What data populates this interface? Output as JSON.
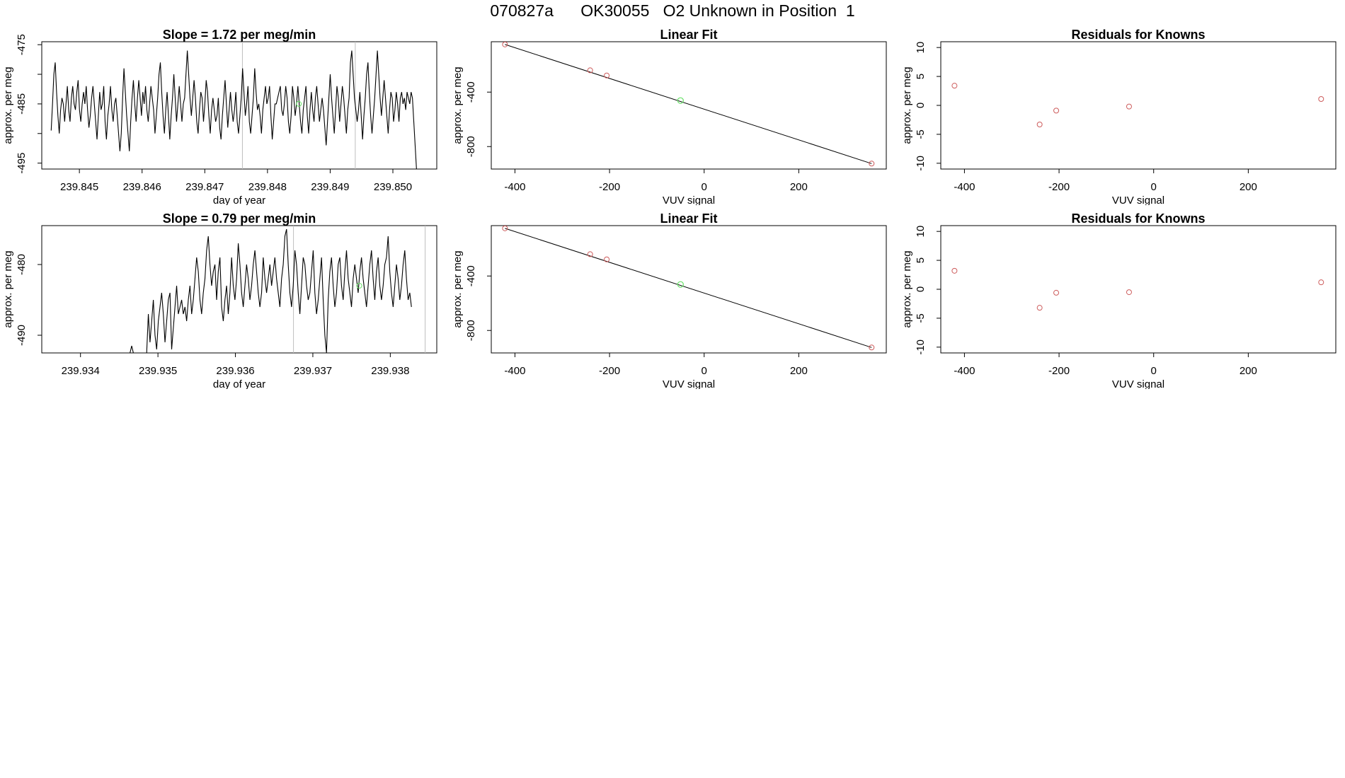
{
  "page": {
    "title": "070827a      OK30055   O2 Unknown in Position  1"
  },
  "colors": {
    "trace": "#000000",
    "vline": "#bebebe",
    "point": "#cd5c5c",
    "highlight": "#66e066"
  },
  "chart_data": [
    {
      "id": "ts1",
      "type": "line",
      "title": "Slope =  1.72  per meg/min",
      "xlabel": "day of year",
      "ylabel": "approx. per meg",
      "xlim": [
        239.8444,
        239.8507
      ],
      "ylim": [
        -496,
        -474.5
      ],
      "xticks": [
        239.845,
        239.846,
        239.847,
        239.848,
        239.849,
        239.85
      ],
      "xtick_labels": [
        "239.845",
        "239.846",
        "239.847",
        "239.848",
        "239.849",
        "239.850"
      ],
      "yticks": [
        -475,
        -480,
        -485,
        -490,
        -495
      ],
      "ytick_labels": [
        "-475",
        "",
        "-485",
        "",
        "-495"
      ],
      "vlines": [
        239.8476,
        239.8494
      ],
      "x_start": 239.84455,
      "x_step": 2.15e-05,
      "y": [
        -489.5,
        -485,
        -480,
        -478,
        -483,
        -487,
        -490,
        -486,
        -484,
        -485,
        -488,
        -485,
        -482,
        -486,
        -488,
        -484,
        -482,
        -485,
        -486,
        -483,
        -481,
        -486,
        -488,
        -485,
        -483,
        -485,
        -482,
        -486,
        -489,
        -487,
        -484,
        -482,
        -485,
        -488,
        -491,
        -487,
        -483,
        -486,
        -485,
        -482,
        -488,
        -491,
        -487,
        -485,
        -482,
        -486,
        -488,
        -485,
        -484,
        -487,
        -490,
        -493,
        -490,
        -484,
        -479,
        -483,
        -487,
        -490,
        -493,
        -488,
        -484,
        -481,
        -485,
        -488,
        -484,
        -481,
        -484,
        -487,
        -483,
        -485,
        -482,
        -486,
        -488,
        -485,
        -482,
        -484,
        -486,
        -490,
        -487,
        -484,
        -480,
        -478,
        -483,
        -487,
        -490,
        -486,
        -483,
        -487,
        -491,
        -487,
        -484,
        -480,
        -484,
        -488,
        -485,
        -482,
        -485,
        -488,
        -485,
        -484,
        -480,
        -476,
        -480,
        -484,
        -487,
        -484,
        -481,
        -484,
        -488,
        -490,
        -486,
        -483,
        -484,
        -488,
        -485,
        -481,
        -483,
        -487,
        -490,
        -486,
        -484,
        -486,
        -488,
        -487,
        -484,
        -489,
        -491,
        -487,
        -484,
        -481,
        -485,
        -489,
        -486,
        -483,
        -486,
        -488,
        -486,
        -483,
        -488,
        -490,
        -487,
        -484,
        -479,
        -483,
        -487,
        -485,
        -482,
        -488,
        -490,
        -487,
        -484,
        -479,
        -483,
        -486,
        -485,
        -487,
        -490,
        -486,
        -484,
        -482,
        -485,
        -484,
        -482,
        -487,
        -491,
        -488,
        -485,
        -485,
        -484,
        -483,
        -482,
        -486,
        -487,
        -485,
        -482,
        -484,
        -488,
        -490,
        -487,
        -482,
        -484,
        -487,
        -485,
        -482,
        -485,
        -488,
        -490,
        -486,
        -484,
        -482,
        -487,
        -490,
        -486,
        -483,
        -486,
        -488,
        -484,
        -482,
        -485,
        -488,
        -486,
        -484,
        -486,
        -489,
        -492,
        -488,
        -484,
        -480,
        -484,
        -487,
        -490,
        -486,
        -482,
        -484,
        -488,
        -485,
        -482,
        -484,
        -487,
        -490,
        -486,
        -484,
        -478,
        -476,
        -480,
        -484,
        -486,
        -488,
        -486,
        -483,
        -487,
        -491,
        -487,
        -484,
        -480,
        -478,
        -483,
        -487,
        -490,
        -487,
        -484,
        -480,
        -476,
        -480,
        -484,
        -487,
        -484,
        -481,
        -484,
        -487,
        -490,
        -486,
        -483,
        -484,
        -488,
        -486,
        -483,
        -485,
        -488,
        -484,
        -483,
        -485,
        -484,
        -486,
        -483,
        -484,
        -485,
        -483,
        -484,
        -488,
        -492,
        -496
      ],
      "marker": {
        "x": 239.8485,
        "y": -485
      }
    },
    {
      "id": "fit1",
      "type": "scatter",
      "title": "Linear Fit",
      "xlabel": "VUV signal",
      "ylabel": "approx. per meg",
      "xlim": [
        -450,
        385
      ],
      "ylim": [
        -965,
        -30
      ],
      "xticks": [
        -400,
        -200,
        0,
        200
      ],
      "xtick_labels": [
        "-400",
        "-200",
        "0",
        "200"
      ],
      "yticks": [
        -400,
        -800
      ],
      "ytick_labels": [
        "-400",
        "-800"
      ],
      "fit_line": {
        "x": [
          -421,
          354
        ],
        "y": [
          -50,
          -925
        ]
      },
      "points": [
        {
          "x": -421,
          "y": -50
        },
        {
          "x": -241,
          "y": -240
        },
        {
          "x": -206,
          "y": -278
        },
        {
          "x": 354,
          "y": -925
        }
      ],
      "highlight": {
        "x": -50,
        "y": -462
      }
    },
    {
      "id": "res1",
      "type": "scatter",
      "title": "Residuals for Knowns",
      "xlabel": "VUV signal",
      "ylabel": "approx. per meg",
      "xlim": [
        -450,
        385
      ],
      "ylim": [
        -11,
        11
      ],
      "xticks": [
        -400,
        -200,
        0,
        200
      ],
      "xtick_labels": [
        "-400",
        "-200",
        "0",
        "200"
      ],
      "yticks": [
        10,
        5,
        0,
        -5,
        -10
      ],
      "ytick_labels": [
        "10",
        "5",
        "0",
        "-5",
        "-10"
      ],
      "points": [
        {
          "x": -421,
          "y": 3.4
        },
        {
          "x": -241,
          "y": -3.3
        },
        {
          "x": -206,
          "y": -0.9
        },
        {
          "x": -52,
          "y": -0.2
        },
        {
          "x": 354,
          "y": 1.1
        }
      ]
    },
    {
      "id": "ts2",
      "type": "line",
      "title": "Slope =  0.79  per meg/min",
      "xlabel": "day of year",
      "ylabel": "approx. per meg",
      "xlim": [
        239.9335,
        239.9386
      ],
      "ylim": [
        -492.5,
        -474.5
      ],
      "xticks": [
        239.934,
        239.935,
        239.936,
        239.937,
        239.938
      ],
      "xtick_labels": [
        "239.934",
        "239.935",
        "239.936",
        "239.937",
        "239.938"
      ],
      "yticks": [
        -480,
        -490
      ],
      "ytick_labels": [
        "-480",
        "-490"
      ],
      "vlines": [
        239.93675,
        239.93845
      ],
      "x_start": 239.9335,
      "x_step": 2.15e-05,
      "y": [
        -492.5,
        -492.5,
        -492.5,
        -492.5,
        -492.5,
        -492.5,
        -492.5,
        -492.5,
        -492.5,
        -492.5,
        -492.5,
        -492.5,
        -492.5,
        -492.5,
        -492.5,
        -492.5,
        -492.5,
        -492.5,
        -492.5,
        -492.5,
        -492.5,
        -492.5,
        -492.5,
        -492.5,
        -492.5,
        -492.5,
        -492.5,
        -492.5,
        -492.5,
        -492.5,
        -492.5,
        -492.5,
        -492.5,
        -492.5,
        -492.5,
        -492.5,
        -492.5,
        -492.5,
        -492.5,
        -492.5,
        -492.5,
        -492.5,
        -492.5,
        -492.5,
        -492.5,
        -492.5,
        -492.5,
        -492.5,
        -492.5,
        -492.5,
        -492.5,
        -492.5,
        -492.5,
        -492.5,
        -491.5,
        -492.5,
        -492.5,
        -492.5,
        -492.5,
        -492.5,
        -492.5,
        -492.5,
        -492.5,
        -492.5,
        -487,
        -491,
        -488,
        -485,
        -490,
        -492,
        -488,
        -486,
        -484,
        -487,
        -491,
        -488,
        -485,
        -484,
        -492,
        -489,
        -486,
        -483,
        -487,
        -486,
        -485,
        -487,
        -486,
        -488,
        -485,
        -483,
        -487,
        -485,
        -482,
        -479,
        -481,
        -485,
        -487,
        -484,
        -482,
        -478,
        -476,
        -480,
        -483,
        -481,
        -480,
        -485,
        -481,
        -479,
        -486,
        -488,
        -485,
        -483,
        -487,
        -484,
        -479,
        -483,
        -485,
        -482,
        -477,
        -480,
        -484,
        -486,
        -483,
        -480,
        -482,
        -485,
        -483,
        -480,
        -478,
        -481,
        -484,
        -486,
        -484,
        -479,
        -482,
        -484,
        -482,
        -480,
        -483,
        -481,
        -479,
        -482,
        -484,
        -486,
        -482,
        -480,
        -476,
        -475,
        -480,
        -484,
        -486,
        -483,
        -478,
        -480,
        -484,
        -487,
        -483,
        -479,
        -480,
        -483,
        -485,
        -484,
        -481,
        -478,
        -484,
        -487,
        -485,
        -482,
        -479,
        -485,
        -490,
        -492.5,
        -485,
        -481,
        -479,
        -483,
        -486,
        -484,
        -480,
        -479,
        -483,
        -485,
        -481,
        -478,
        -482,
        -484,
        -486,
        -482,
        -480,
        -482,
        -484,
        -481,
        -479,
        -482,
        -484,
        -486,
        -483,
        -480,
        -478,
        -482,
        -485,
        -481,
        -479,
        -483,
        -485,
        -483,
        -480,
        -479,
        -476,
        -481,
        -484,
        -486,
        -483,
        -480,
        -482,
        -485,
        -483,
        -480,
        -478,
        -482,
        -485,
        -484,
        -486
      ],
      "marker": {
        "x": 239.9376,
        "y": -483
      }
    },
    {
      "id": "fit2",
      "type": "scatter",
      "title": "Linear Fit",
      "xlabel": "VUV signal",
      "ylabel": "approx. per meg",
      "xlim": [
        -450,
        385
      ],
      "ylim": [
        -965,
        -30
      ],
      "xticks": [
        -400,
        -200,
        0,
        200
      ],
      "xtick_labels": [
        "-400",
        "-200",
        "0",
        "200"
      ],
      "yticks": [
        -400,
        -800
      ],
      "ytick_labels": [
        "-400",
        "-800"
      ],
      "fit_line": {
        "x": [
          -421,
          354
        ],
        "y": [
          -50,
          -925
        ]
      },
      "points": [
        {
          "x": -421,
          "y": -50
        },
        {
          "x": -241,
          "y": -240
        },
        {
          "x": -206,
          "y": -278
        },
        {
          "x": 354,
          "y": -925
        }
      ],
      "highlight": {
        "x": -50,
        "y": -462
      }
    },
    {
      "id": "res2",
      "type": "scatter",
      "title": "Residuals for Knowns",
      "xlabel": "VUV signal",
      "ylabel": "approx. per meg",
      "xlim": [
        -450,
        385
      ],
      "ylim": [
        -11,
        11
      ],
      "xticks": [
        -400,
        -200,
        0,
        200
      ],
      "xtick_labels": [
        "-400",
        "-200",
        "0",
        "200"
      ],
      "yticks": [
        10,
        5,
        0,
        -5,
        -10
      ],
      "ytick_labels": [
        "10",
        "5",
        "0",
        "-5",
        "-10"
      ],
      "points": [
        {
          "x": -421,
          "y": 3.2
        },
        {
          "x": -241,
          "y": -3.2
        },
        {
          "x": -206,
          "y": -0.6
        },
        {
          "x": -52,
          "y": -0.5
        },
        {
          "x": 354,
          "y": 1.2
        }
      ]
    }
  ]
}
